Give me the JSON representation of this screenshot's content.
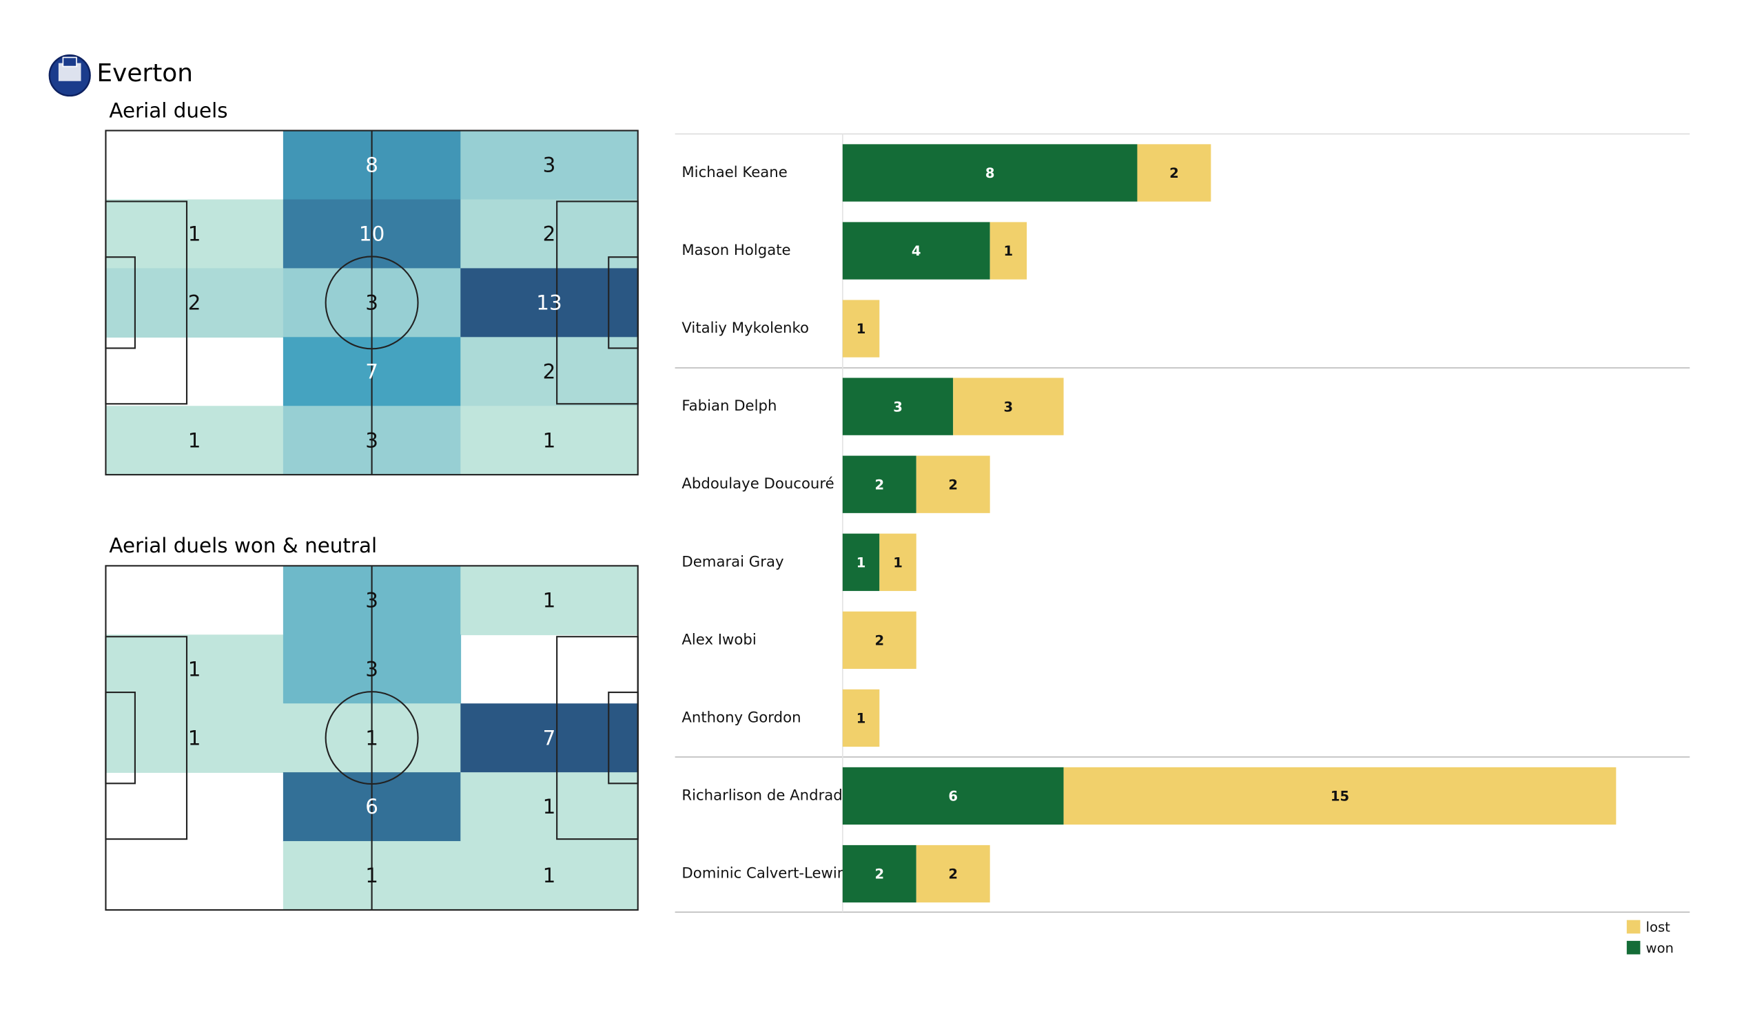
{
  "title": "Everton",
  "chart_data": [
    {
      "type": "heatmap",
      "title": "Aerial duels",
      "values": [
        [
          null,
          8,
          3
        ],
        [
          1,
          10,
          2
        ],
        [
          2,
          3,
          13
        ],
        [
          null,
          7,
          2
        ],
        [
          1,
          3,
          1
        ]
      ],
      "colorscale": [
        "#c0e5dc",
        "#45a3c0",
        "#2a5783"
      ]
    },
    {
      "type": "heatmap",
      "title": "Aerial duels won & neutral",
      "values": [
        [
          null,
          3,
          1
        ],
        [
          1,
          3,
          null
        ],
        [
          1,
          1,
          7
        ],
        [
          null,
          6,
          1
        ],
        [
          null,
          1,
          1
        ]
      ],
      "colorscale": [
        "#c0e5dc",
        "#45a3c0",
        "#2a5783"
      ]
    },
    {
      "type": "stacked-barh",
      "categories": [
        "Michael Keane",
        "Mason Holgate",
        "Vitaliy Mykolenko",
        "Fabian Delph",
        "Abdoulaye Doucouré",
        "Demarai Gray",
        "Alex Iwobi",
        "Anthony Gordon",
        "Richarlison de Andrade",
        "Dominic Calvert-Lewin"
      ],
      "series": [
        {
          "name": "won",
          "color": "#146c37",
          "label_color": "#ffffff",
          "values": [
            8,
            4,
            0,
            3,
            2,
            1,
            0,
            0,
            6,
            2
          ]
        },
        {
          "name": "lost",
          "color": "#f1d06b",
          "label_color": "#111111",
          "values": [
            2,
            1,
            1,
            3,
            2,
            1,
            2,
            1,
            15,
            2
          ]
        }
      ],
      "xlim": [
        0,
        23
      ]
    }
  ]
}
